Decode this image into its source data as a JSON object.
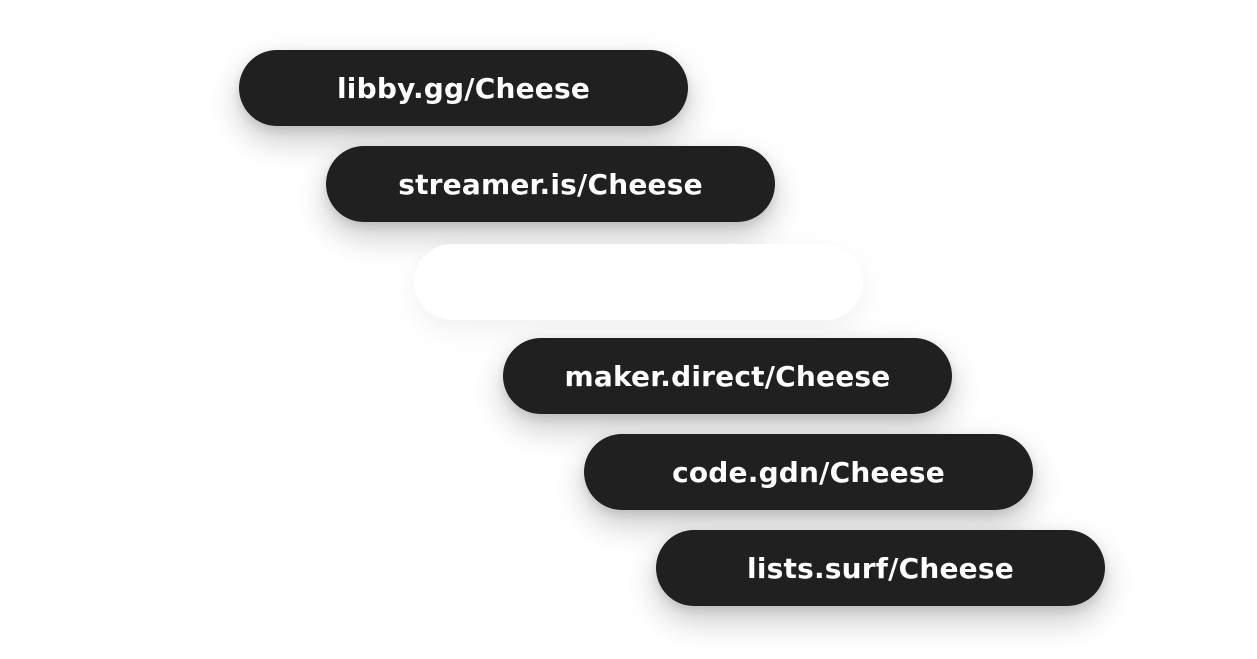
{
  "links": [
    {
      "label": "libby.gg/Cheese"
    },
    {
      "label": "streamer.is/Cheese"
    },
    {
      "label": "maker.direct/Cheese"
    },
    {
      "label": "code.gdn/Cheese"
    },
    {
      "label": "lists.surf/Cheese"
    }
  ],
  "colors": {
    "pill_background": "#202020",
    "pill_text": "#ffffff",
    "page_background": "#ffffff"
  }
}
